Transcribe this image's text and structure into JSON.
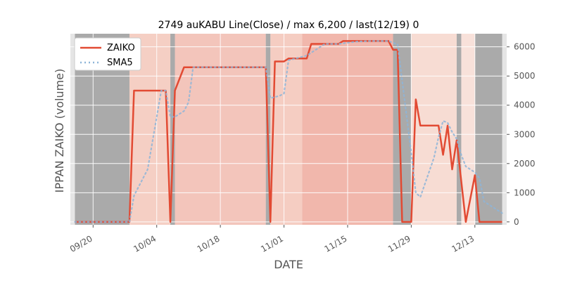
{
  "chart_data": {
    "type": "line",
    "title": "2749 auKABU Line(Close) / max 6,200 / last(12/19) 0",
    "xlabel": "DATE",
    "ylabel": "IPPAN ZAIKO (volume)",
    "xlim": [
      "2023-09-15",
      "2023-12-20"
    ],
    "ylim": [
      -100,
      6450
    ],
    "yticks": [
      0,
      1000,
      2000,
      3000,
      4000,
      5000,
      6000
    ],
    "yticks_labels": [
      "0",
      "1000",
      "2000",
      "3000",
      "4000",
      "5000",
      "6000"
    ],
    "xticks": [
      "2023-09-20",
      "2023-10-04",
      "2023-10-18",
      "2023-11-01",
      "2023-11-15",
      "2023-11-29",
      "2023-12-13"
    ],
    "xticks_labels": [
      "09/20",
      "10/04",
      "10/18",
      "11/01",
      "11/15",
      "11/29",
      "12/13"
    ],
    "legend": {
      "placement": "top-left"
    },
    "colors": {
      "zaiko": "#e24a33",
      "sma": "#8eb5d8",
      "weekend": "#aaaaaa",
      "axes_bg": "#e5e5e5"
    },
    "weekend_spans": [
      [
        "2023-09-16",
        "2023-09-28"
      ],
      [
        "2023-10-07",
        "2023-10-08"
      ],
      [
        "2023-10-28",
        "2023-10-29"
      ],
      [
        "2023-11-25",
        "2023-11-29"
      ],
      [
        "2023-12-09",
        "2023-12-10"
      ],
      [
        "2023-12-13",
        "2023-12-19"
      ]
    ],
    "bg_bands": [
      {
        "start": "2023-09-28",
        "end": "2023-10-07",
        "color": "#f5cfc4"
      },
      {
        "start": "2023-10-08",
        "end": "2023-10-28",
        "color": "#f3c5bb"
      },
      {
        "start": "2023-10-29",
        "end": "2023-11-05",
        "color": "#f5cdc2"
      },
      {
        "start": "2023-11-05",
        "end": "2023-11-25",
        "color": "#f1b7ac"
      },
      {
        "start": "2023-11-29",
        "end": "2023-12-09",
        "color": "#f7dcd3"
      },
      {
        "start": "2023-12-10",
        "end": "2023-12-13",
        "color": "#f8e1da"
      }
    ],
    "series": [
      {
        "name": "ZAIKO",
        "style": "solid",
        "points": [
          [
            "2023-09-16",
            0
          ],
          [
            "2023-09-28",
            0
          ],
          [
            "2023-09-29",
            4500
          ],
          [
            "2023-10-02",
            4500
          ],
          [
            "2023-10-03",
            4500
          ],
          [
            "2023-10-04",
            4500
          ],
          [
            "2023-10-05",
            4500
          ],
          [
            "2023-10-06",
            4500
          ],
          [
            "2023-10-07",
            0
          ],
          [
            "2023-10-08",
            4500
          ],
          [
            "2023-10-10",
            5300
          ],
          [
            "2023-10-11",
            5300
          ],
          [
            "2023-10-12",
            5300
          ],
          [
            "2023-10-13",
            5300
          ],
          [
            "2023-10-16",
            5300
          ],
          [
            "2023-10-17",
            5300
          ],
          [
            "2023-10-18",
            5300
          ],
          [
            "2023-10-19",
            5300
          ],
          [
            "2023-10-20",
            5300
          ],
          [
            "2023-10-23",
            5300
          ],
          [
            "2023-10-24",
            5300
          ],
          [
            "2023-10-25",
            5300
          ],
          [
            "2023-10-26",
            5300
          ],
          [
            "2023-10-27",
            5300
          ],
          [
            "2023-10-28",
            5300
          ],
          [
            "2023-10-29",
            0
          ],
          [
            "2023-10-30",
            5500
          ],
          [
            "2023-10-31",
            5500
          ],
          [
            "2023-11-01",
            5500
          ],
          [
            "2023-11-02",
            5600
          ],
          [
            "2023-11-03",
            5600
          ],
          [
            "2023-11-06",
            5600
          ],
          [
            "2023-11-07",
            6100
          ],
          [
            "2023-11-08",
            6100
          ],
          [
            "2023-11-09",
            6100
          ],
          [
            "2023-11-10",
            6100
          ],
          [
            "2023-11-13",
            6100
          ],
          [
            "2023-11-14",
            6200
          ],
          [
            "2023-11-15",
            6200
          ],
          [
            "2023-11-16",
            6200
          ],
          [
            "2023-11-17",
            6200
          ],
          [
            "2023-11-20",
            6200
          ],
          [
            "2023-11-21",
            6200
          ],
          [
            "2023-11-22",
            6200
          ],
          [
            "2023-11-23",
            6200
          ],
          [
            "2023-11-24",
            6200
          ],
          [
            "2023-11-25",
            5900
          ],
          [
            "2023-11-26",
            5900
          ],
          [
            "2023-11-27",
            0
          ],
          [
            "2023-11-28",
            0
          ],
          [
            "2023-11-29",
            0
          ],
          [
            "2023-11-30",
            4200
          ],
          [
            "2023-12-01",
            3300
          ],
          [
            "2023-12-04",
            3300
          ],
          [
            "2023-12-05",
            3300
          ],
          [
            "2023-12-06",
            2300
          ],
          [
            "2023-12-07",
            3300
          ],
          [
            "2023-12-08",
            1800
          ],
          [
            "2023-12-09",
            2800
          ],
          [
            "2023-12-10",
            1400
          ],
          [
            "2023-12-11",
            0
          ],
          [
            "2023-12-13",
            1600
          ],
          [
            "2023-12-14",
            0
          ],
          [
            "2023-12-15",
            0
          ],
          [
            "2023-12-18",
            0
          ],
          [
            "2023-12-19",
            0
          ]
        ]
      },
      {
        "name": "SMA5",
        "style": "dotted",
        "points": [
          [
            "2023-09-16",
            0
          ],
          [
            "2023-09-28",
            0
          ],
          [
            "2023-09-29",
            900
          ],
          [
            "2023-10-02",
            1800
          ],
          [
            "2023-10-03",
            2700
          ],
          [
            "2023-10-04",
            3600
          ],
          [
            "2023-10-05",
            4500
          ],
          [
            "2023-10-06",
            4500
          ],
          [
            "2023-10-07",
            3600
          ],
          [
            "2023-10-08",
            3600
          ],
          [
            "2023-10-10",
            3800
          ],
          [
            "2023-10-11",
            4100
          ],
          [
            "2023-10-12",
            5300
          ],
          [
            "2023-10-13",
            5300
          ],
          [
            "2023-10-16",
            5300
          ],
          [
            "2023-10-17",
            5300
          ],
          [
            "2023-10-18",
            5300
          ],
          [
            "2023-10-19",
            5300
          ],
          [
            "2023-10-20",
            5300
          ],
          [
            "2023-10-23",
            5300
          ],
          [
            "2023-10-24",
            5300
          ],
          [
            "2023-10-25",
            5300
          ],
          [
            "2023-10-26",
            5300
          ],
          [
            "2023-10-27",
            5300
          ],
          [
            "2023-10-28",
            5300
          ],
          [
            "2023-10-29",
            4240
          ],
          [
            "2023-10-30",
            4280
          ],
          [
            "2023-10-31",
            4320
          ],
          [
            "2023-11-01",
            4400
          ],
          [
            "2023-11-02",
            5540
          ],
          [
            "2023-11-03",
            5580
          ],
          [
            "2023-11-06",
            5700
          ],
          [
            "2023-11-07",
            5800
          ],
          [
            "2023-11-08",
            5900
          ],
          [
            "2023-11-09",
            6000
          ],
          [
            "2023-11-10",
            6100
          ],
          [
            "2023-11-13",
            6100
          ],
          [
            "2023-11-14",
            6120
          ],
          [
            "2023-11-15",
            6140
          ],
          [
            "2023-11-16",
            6160
          ],
          [
            "2023-11-17",
            6180
          ],
          [
            "2023-11-20",
            6200
          ],
          [
            "2023-11-21",
            6200
          ],
          [
            "2023-11-22",
            6200
          ],
          [
            "2023-11-23",
            6200
          ],
          [
            "2023-11-24",
            6200
          ],
          [
            "2023-11-25",
            6140
          ],
          [
            "2023-11-26",
            6080
          ],
          [
            "2023-11-27",
            4840
          ],
          [
            "2023-11-28",
            3600
          ],
          [
            "2023-11-29",
            2360
          ],
          [
            "2023-11-30",
            1000
          ],
          [
            "2023-12-01",
            850
          ],
          [
            "2023-12-04",
            2200
          ],
          [
            "2023-12-05",
            2900
          ],
          [
            "2023-12-06",
            3460
          ],
          [
            "2023-12-07",
            3400
          ],
          [
            "2023-12-08",
            3080
          ],
          [
            "2023-12-09",
            2840
          ],
          [
            "2023-12-10",
            2300
          ],
          [
            "2023-12-11",
            1900
          ],
          [
            "2023-12-13",
            1700
          ],
          [
            "2023-12-14",
            1500
          ],
          [
            "2023-12-15",
            700
          ],
          [
            "2023-12-18",
            400
          ],
          [
            "2023-12-19",
            300
          ]
        ]
      }
    ]
  }
}
